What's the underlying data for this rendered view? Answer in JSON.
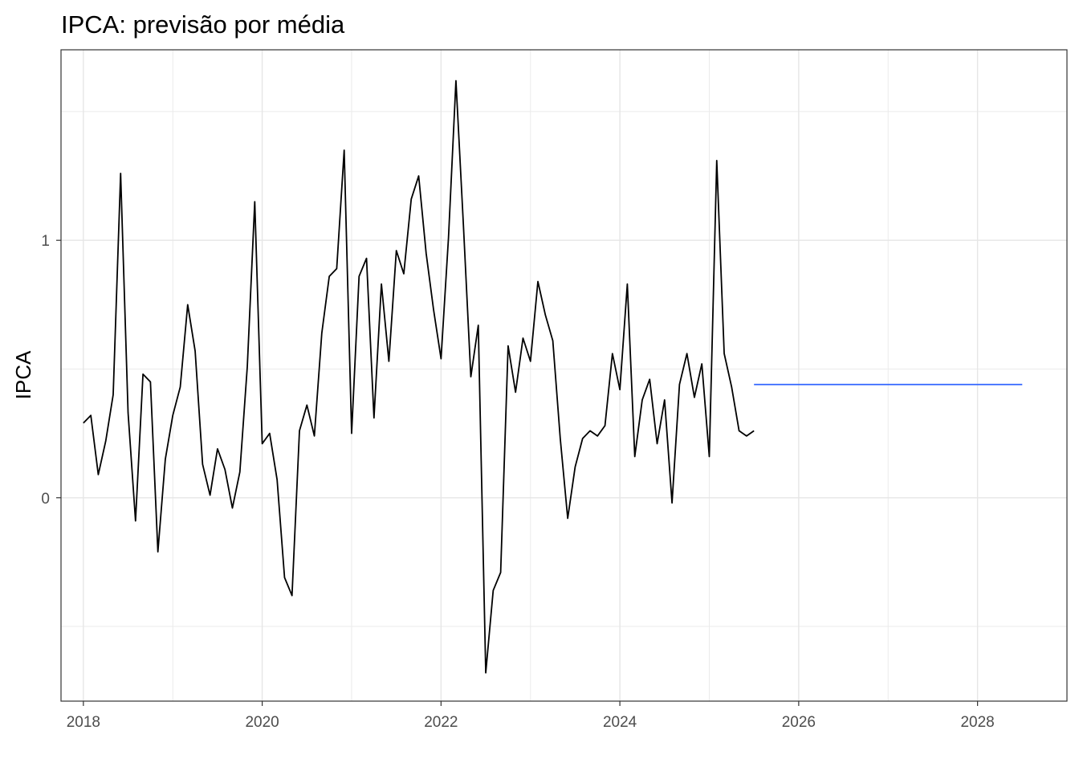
{
  "chart_data": {
    "type": "line",
    "title": "IPCA: previsão por média",
    "xlabel": "",
    "ylabel": "IPCA",
    "xlim": [
      2017.75,
      2029.0
    ],
    "ylim": [
      -0.79,
      1.74
    ],
    "x_ticks": [
      2018,
      2020,
      2022,
      2024,
      2026,
      2028
    ],
    "y_ticks": [
      0,
      1
    ],
    "grid": true,
    "legend": "none",
    "series": [
      {
        "color": "#000000",
        "start": 2018.0,
        "step_months": 1,
        "values": [
          0.29,
          0.32,
          0.09,
          0.22,
          0.4,
          1.26,
          0.33,
          -0.09,
          0.48,
          0.45,
          -0.21,
          0.15,
          0.32,
          0.43,
          0.75,
          0.57,
          0.13,
          0.01,
          0.19,
          0.11,
          -0.04,
          0.1,
          0.51,
          1.15,
          0.21,
          0.25,
          0.07,
          -0.31,
          -0.38,
          0.26,
          0.36,
          0.24,
          0.64,
          0.86,
          0.89,
          1.35,
          0.25,
          0.86,
          0.93,
          0.31,
          0.83,
          0.53,
          0.96,
          0.87,
          1.16,
          1.25,
          0.95,
          0.73,
          0.54,
          1.01,
          1.62,
          1.06,
          0.47,
          0.67,
          -0.68,
          -0.36,
          -0.29,
          0.59,
          0.41,
          0.62,
          0.53,
          0.84,
          0.71,
          0.61,
          0.23,
          -0.08,
          0.12,
          0.23,
          0.26,
          0.24,
          0.28,
          0.56,
          0.42,
          0.83,
          0.16,
          0.38,
          0.46,
          0.21,
          0.38,
          -0.02,
          0.44,
          0.56,
          0.39,
          0.52,
          0.16,
          1.31,
          0.56,
          0.43,
          0.26,
          0.24,
          0.26
        ]
      },
      {
        "color": "#3366ff",
        "x": [
          2025.5,
          2028.5
        ],
        "values": [
          0.44,
          0.44
        ]
      }
    ]
  }
}
